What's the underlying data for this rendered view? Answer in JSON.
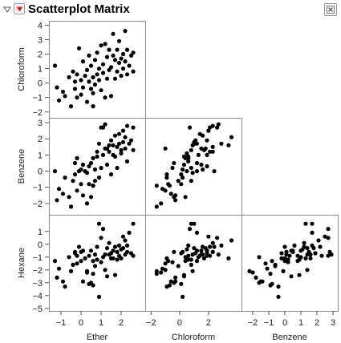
{
  "header": {
    "title": "Scatterplot Matrix",
    "disclosure_icon": "disclosure-triangle-down-icon",
    "menu_icon": "red-triangle-menu-icon",
    "close_icon": "close-box-icon",
    "menu_color": "#d62020"
  },
  "chart_data": {
    "type": "scatter",
    "title": "Scatterplot Matrix",
    "variables": [
      "Ether",
      "Chloroform",
      "Benzene",
      "Hexane"
    ],
    "row_variables": [
      "Chloroform",
      "Benzene",
      "Hexane"
    ],
    "column_variables": [
      "Ether",
      "Chloroform",
      "Benzene"
    ],
    "ranges": {
      "Ether": [
        -1.6,
        3.2
      ],
      "Chloroform": [
        -2.4,
        4.3
      ],
      "Benzene": [
        -2.7,
        3.3
      ],
      "Hexane": [
        -5.2,
        2.3
      ]
    },
    "ticks": {
      "Ether": [
        -1,
        0,
        1,
        2
      ],
      "Chloroform": [
        -2,
        -1,
        0,
        1,
        2,
        3,
        4
      ],
      "Benzene": [
        -2,
        -1,
        0,
        1,
        2,
        3
      ],
      "Hexane": [
        -5,
        -4,
        -3,
        -2,
        -1,
        0,
        1
      ]
    },
    "x_ticks": {
      "Ether": [
        -1,
        0,
        1,
        2
      ],
      "Chloroform": [
        -2,
        0,
        2
      ],
      "Benzene": [
        -2,
        -1,
        0,
        1,
        2,
        3
      ]
    },
    "marker_color": "#000000",
    "grid": false,
    "points": [
      [
        -1.3,
        1.2,
        0.0,
        -1.3
      ],
      [
        -1.2,
        -0.3,
        -1.8,
        -2.6
      ],
      [
        -1.1,
        -1.2,
        -1.1,
        -1.9
      ],
      [
        -0.9,
        -0.6,
        -1.4,
        -2.9
      ],
      [
        -0.8,
        -0.9,
        -0.4,
        -3.3
      ],
      [
        -0.6,
        0.4,
        -1.6,
        -1.0
      ],
      [
        -0.5,
        -1.6,
        -2.2,
        -2.1
      ],
      [
        -0.4,
        0.8,
        -0.6,
        -1.6
      ],
      [
        -0.3,
        0.1,
        -0.2,
        -0.7
      ],
      [
        -0.3,
        -0.4,
        0.5,
        -0.6
      ],
      [
        -0.2,
        0.6,
        0.8,
        -0.9
      ],
      [
        -0.1,
        2.4,
        0.0,
        -0.2
      ],
      [
        0.0,
        -0.8,
        -0.8,
        -1.3
      ],
      [
        0.0,
        0.2,
        0.1,
        -0.6
      ],
      [
        0.1,
        -0.3,
        -1.5,
        -2.9
      ],
      [
        0.1,
        1.5,
        0.4,
        -0.5
      ],
      [
        0.2,
        0.5,
        0.0,
        -1.1
      ],
      [
        0.3,
        -1.3,
        -2.0,
        -2.2
      ],
      [
        0.3,
        0.9,
        -0.1,
        -2.1
      ],
      [
        0.4,
        0.1,
        -0.8,
        -3.1
      ],
      [
        0.4,
        1.9,
        0.3,
        -0.9
      ],
      [
        0.5,
        -0.4,
        -1.6,
        -3.0
      ],
      [
        0.5,
        1.2,
        0.5,
        -0.5
      ],
      [
        0.6,
        0.4,
        0.8,
        -1.3
      ],
      [
        0.6,
        -0.7,
        -0.9,
        -3.2
      ],
      [
        0.7,
        1.6,
        0.1,
        -0.8
      ],
      [
        0.7,
        -0.1,
        -0.6,
        -1.7
      ],
      [
        0.8,
        0.6,
        0.9,
        -1.2
      ],
      [
        0.8,
        2.1,
        1.2,
        -0.2
      ],
      [
        0.9,
        0.2,
        -0.4,
        -4.1
      ],
      [
        0.9,
        1.0,
        1.7,
        1.6
      ],
      [
        1.0,
        2.6,
        2.7,
        0.5
      ],
      [
        1.0,
        -0.5,
        0.2,
        -1.4
      ],
      [
        1.1,
        1.3,
        1.0,
        -1.0
      ],
      [
        1.1,
        0.7,
        2.7,
        1.2
      ],
      [
        1.2,
        2.7,
        2.9,
        -0.8
      ],
      [
        1.2,
        -1.0,
        1.4,
        -2.0
      ],
      [
        1.3,
        0.3,
        0.4,
        -2.5
      ],
      [
        1.3,
        1.8,
        1.4,
        -0.3
      ],
      [
        1.4,
        0.9,
        1.6,
        -0.8
      ],
      [
        1.4,
        2.3,
        1.2,
        0.1
      ],
      [
        1.5,
        -0.9,
        -0.2,
        -1.1
      ],
      [
        1.5,
        1.1,
        1.9,
        -0.7
      ],
      [
        1.6,
        1.9,
        1.0,
        -0.5
      ],
      [
        1.6,
        3.4,
        1.6,
        -1.1
      ],
      [
        1.7,
        0.3,
        0.9,
        -2.4
      ],
      [
        1.7,
        1.6,
        2.2,
        -0.2
      ],
      [
        1.8,
        2.3,
        1.5,
        -0.6
      ],
      [
        1.8,
        0.8,
        0.2,
        -1.2
      ],
      [
        1.9,
        1.4,
        2.3,
        -0.9
      ],
      [
        1.9,
        2.9,
        1.7,
        -0.1
      ],
      [
        2.0,
        0.5,
        1.1,
        -0.4
      ],
      [
        2.0,
        1.7,
        1.3,
        -1.1
      ],
      [
        2.1,
        2.0,
        2.5,
        0.6
      ],
      [
        2.1,
        1.0,
        1.8,
        -0.3
      ],
      [
        2.2,
        3.6,
        2.1,
        0.3
      ],
      [
        2.2,
        1.5,
        1.4,
        -0.8
      ],
      [
        2.3,
        0.6,
        0.6,
        -0.1
      ],
      [
        2.3,
        2.3,
        2.8,
        -0.6
      ],
      [
        2.4,
        1.2,
        1.7,
        0.9
      ],
      [
        2.5,
        1.9,
        1.9,
        -0.7
      ],
      [
        2.6,
        2.1,
        2.7,
        -0.9
      ],
      [
        2.6,
        0.8,
        1.3,
        1.6
      ],
      [
        -0.2,
        -1.0,
        -1.2,
        -1.5
      ],
      [
        0.6,
        -1.6,
        -0.9,
        -2.3
      ]
    ]
  }
}
